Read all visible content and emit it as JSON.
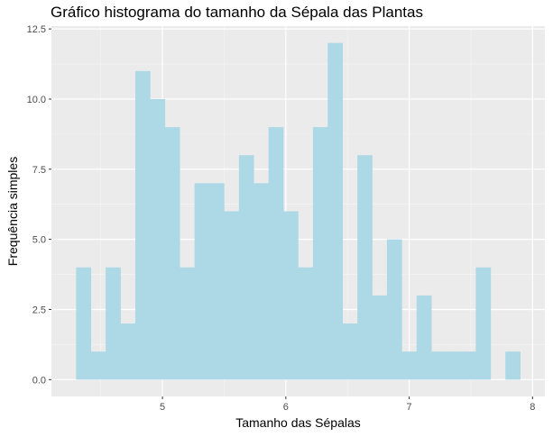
{
  "chart_data": {
    "type": "bar",
    "title": "Gráfico histograma do tamanho da Sépala das Plantas",
    "xlabel": "Tamanho das Sépalas",
    "ylabel": "Frequência simples",
    "bin_width": 0.12,
    "bins": [
      {
        "x0": 4.3,
        "x1": 4.42,
        "count": 4
      },
      {
        "x0": 4.42,
        "x1": 4.54,
        "count": 1
      },
      {
        "x0": 4.54,
        "x1": 4.66,
        "count": 4
      },
      {
        "x0": 4.66,
        "x1": 4.78,
        "count": 2
      },
      {
        "x0": 4.78,
        "x1": 4.9,
        "count": 11
      },
      {
        "x0": 4.9,
        "x1": 5.02,
        "count": 10
      },
      {
        "x0": 5.02,
        "x1": 5.14,
        "count": 9
      },
      {
        "x0": 5.14,
        "x1": 5.26,
        "count": 4
      },
      {
        "x0": 5.26,
        "x1": 5.38,
        "count": 7
      },
      {
        "x0": 5.38,
        "x1": 5.5,
        "count": 7
      },
      {
        "x0": 5.5,
        "x1": 5.62,
        "count": 6
      },
      {
        "x0": 5.62,
        "x1": 5.74,
        "count": 8
      },
      {
        "x0": 5.74,
        "x1": 5.86,
        "count": 7
      },
      {
        "x0": 5.86,
        "x1": 5.98,
        "count": 9
      },
      {
        "x0": 5.98,
        "x1": 6.1,
        "count": 6
      },
      {
        "x0": 6.1,
        "x1": 6.22,
        "count": 4
      },
      {
        "x0": 6.22,
        "x1": 6.34,
        "count": 9
      },
      {
        "x0": 6.34,
        "x1": 6.46,
        "count": 12
      },
      {
        "x0": 6.46,
        "x1": 6.58,
        "count": 2
      },
      {
        "x0": 6.58,
        "x1": 6.7,
        "count": 8
      },
      {
        "x0": 6.7,
        "x1": 6.82,
        "count": 3
      },
      {
        "x0": 6.82,
        "x1": 6.94,
        "count": 5
      },
      {
        "x0": 6.94,
        "x1": 7.06,
        "count": 1
      },
      {
        "x0": 7.06,
        "x1": 7.18,
        "count": 3
      },
      {
        "x0": 7.18,
        "x1": 7.3,
        "count": 1
      },
      {
        "x0": 7.3,
        "x1": 7.42,
        "count": 1
      },
      {
        "x0": 7.42,
        "x1": 7.54,
        "count": 1
      },
      {
        "x0": 7.54,
        "x1": 7.66,
        "count": 4
      },
      {
        "x0": 7.66,
        "x1": 7.78,
        "count": 0
      },
      {
        "x0": 7.78,
        "x1": 7.9,
        "count": 1
      }
    ],
    "xlim": [
      4.1,
      8.1
    ],
    "ylim": [
      -0.6,
      12.6
    ],
    "x_ticks": [
      5,
      6,
      7,
      8
    ],
    "x_tick_labels": [
      "5",
      "6",
      "7",
      "8"
    ],
    "y_ticks": [
      0,
      2.5,
      5,
      7.5,
      10,
      12.5
    ],
    "y_tick_labels": [
      "0.0",
      "2.5",
      "5.0",
      "7.5",
      "10.0",
      "12.5"
    ],
    "grid": true,
    "legend": "none",
    "colors": {
      "bar_fill": "#add8e6",
      "panel_background": "#ebebeb",
      "grid_major": "#ffffff",
      "grid_minor": "#f5f5f5"
    }
  }
}
